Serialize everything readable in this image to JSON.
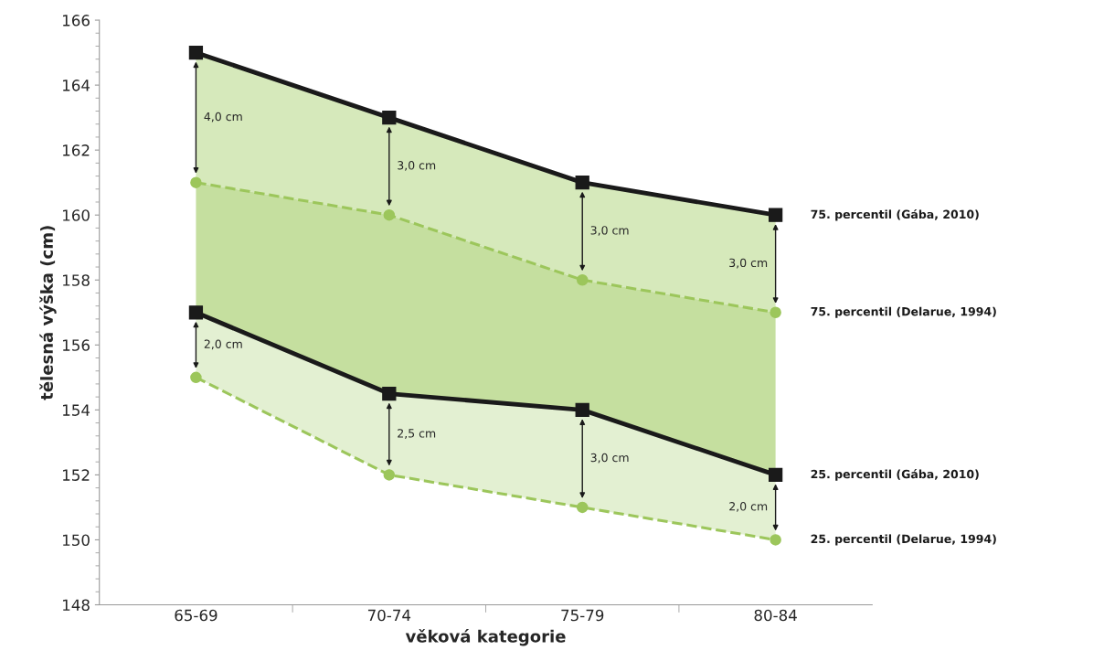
{
  "chart_data": {
    "type": "line",
    "xlabel": "věková kategorie",
    "ylabel": "tělesná výška (cm)",
    "categories": [
      "65-69",
      "70-74",
      "75-79",
      "80-84"
    ],
    "series": [
      {
        "name": "75. percentil (Gába, 2010)",
        "color": "#1a1a1a",
        "marker": "square",
        "line_style": "solid",
        "values": [
          165,
          163,
          161,
          160
        ],
        "lower": [
          161,
          160,
          158,
          157
        ],
        "upper": [
          165,
          163,
          161,
          160
        ]
      },
      {
        "name": "75. percentil (Delarue, 1994)",
        "color": "#9cc65b",
        "marker": "circle",
        "line_style": "dashed",
        "values": [
          161,
          160,
          158,
          157
        ],
        "lower": [
          157,
          154.5,
          154,
          152
        ],
        "upper": [
          161,
          160,
          158,
          157
        ]
      },
      {
        "name": "25. percentil (Gába, 2010)",
        "color": "#1a1a1a",
        "marker": "square",
        "line_style": "solid",
        "values": [
          157,
          154.5,
          154,
          152
        ],
        "lower": [
          155,
          152,
          151,
          150
        ],
        "upper": [
          157,
          154.5,
          154,
          152
        ]
      },
      {
        "name": "25. percentil (Delarue, 1994)",
        "color": "#9cc65b",
        "marker": "circle",
        "line_style": "dashed",
        "values": [
          155,
          152,
          151,
          150
        ]
      }
    ],
    "annotations": [
      "4,0 cm",
      "3,0 cm",
      "3,0 cm",
      "3,0 cm",
      "2,0 cm",
      "2,5 cm",
      "3,0 cm",
      "2,0 cm"
    ],
    "ylim": [
      148,
      166
    ],
    "yticks": [
      148,
      150,
      152,
      154,
      156,
      158,
      160,
      162,
      164,
      166
    ],
    "grid": false,
    "legend": false
  }
}
